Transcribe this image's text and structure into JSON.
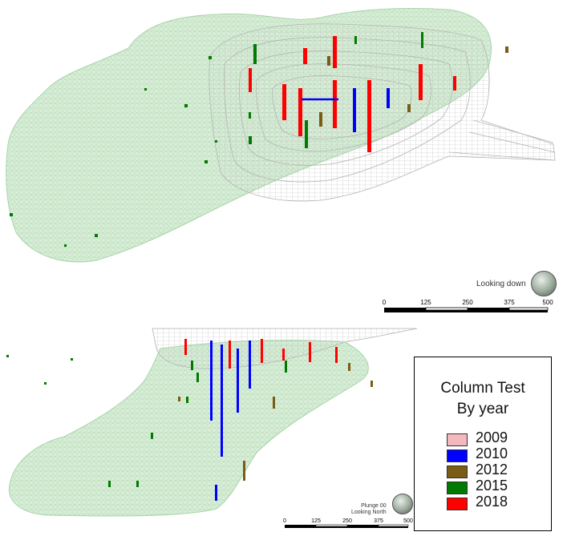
{
  "plan_view": {
    "caption": "Looking down",
    "scale_ticks": [
      "0",
      "125",
      "250",
      "375",
      "500"
    ]
  },
  "section_view": {
    "caption_line1": "Plunge 00",
    "caption_line2": "Looking North",
    "scale_ticks": [
      "0",
      "125",
      "250",
      "375",
      "500"
    ]
  },
  "legend": {
    "title": "Column Test",
    "subtitle": "By year",
    "items": [
      {
        "label": "2009",
        "color": "#f4b8bf"
      },
      {
        "label": "2010",
        "color": "#0000ff"
      },
      {
        "label": "2012",
        "color": "#7a5c14"
      },
      {
        "label": "2015",
        "color": "#007a00"
      },
      {
        "label": "2018",
        "color": "#ff0000"
      }
    ]
  },
  "colors": {
    "ore_body_fill": "#cfe8cf",
    "ore_body_mesh": "#a8d4a8",
    "pit_mesh": "#b4b4b4"
  }
}
